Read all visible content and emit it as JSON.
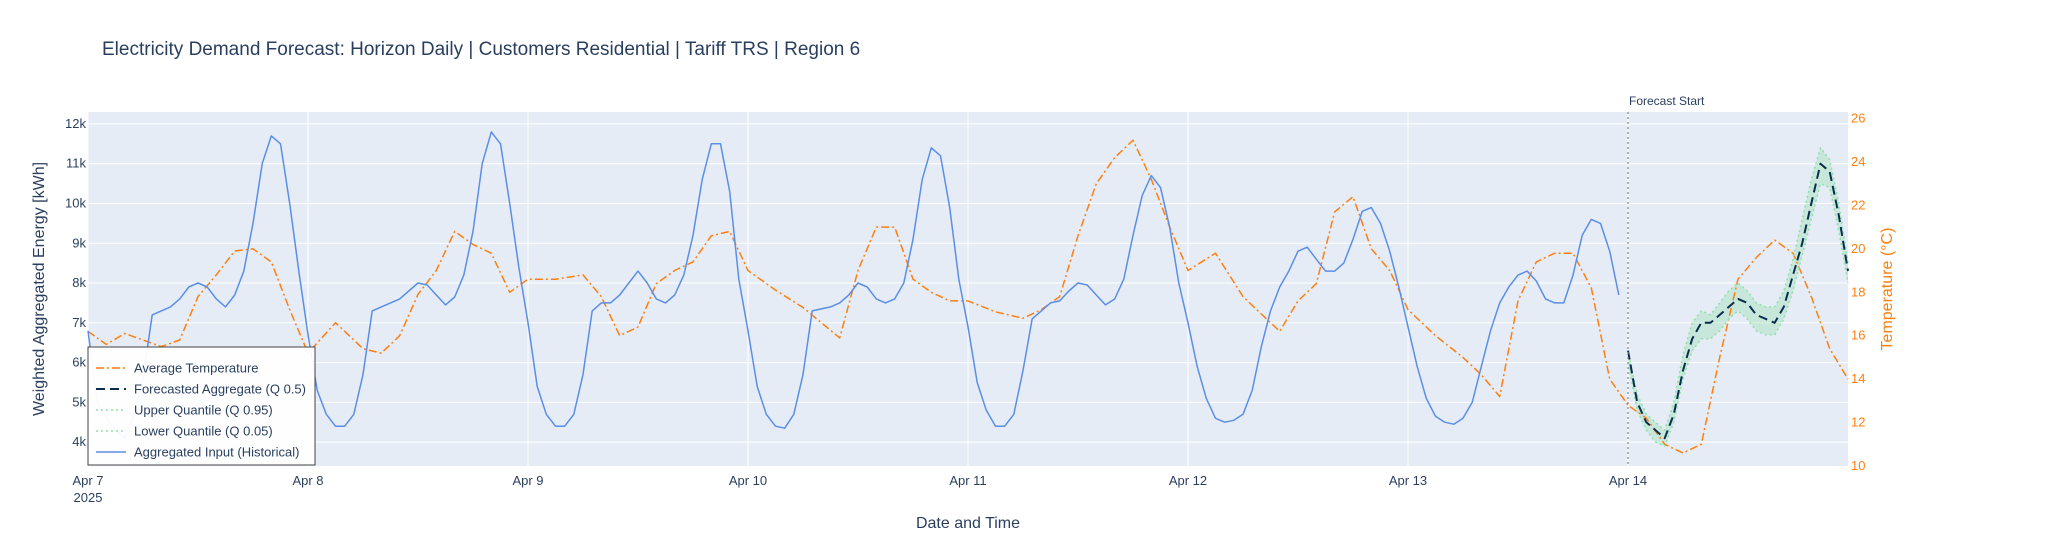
{
  "chart_data": {
    "type": "line",
    "title": "Electricity Demand Forecast: Horizon Daily | Customers Residential | Tariff TRS | Region 6",
    "xlabel": "Date and Time",
    "ylabel": "Weighted Aggregated Energy [kWh]",
    "y2label": "Temperature (°C)",
    "xlim": [
      "2025-04-07 00:00",
      "2025-04-15 00:00"
    ],
    "ylim": [
      3400,
      12300
    ],
    "y2lim": [
      10,
      26.3
    ],
    "x_ticks": [
      "Apr 7",
      "Apr 8",
      "Apr 9",
      "Apr 10",
      "Apr 11",
      "Apr 12",
      "Apr 13",
      "Apr 14"
    ],
    "x_tick_year": "2025",
    "y_ticks": [
      "4k",
      "5k",
      "6k",
      "7k",
      "8k",
      "9k",
      "10k",
      "11k",
      "12k"
    ],
    "y2_ticks": [
      "10",
      "12",
      "14",
      "16",
      "18",
      "20",
      "22",
      "24",
      "26"
    ],
    "grid": true,
    "legend_position": "bottom-left",
    "annotation": {
      "text": "Forecast Start",
      "x": "2025-04-14 00:00"
    },
    "series": [
      {
        "name": "Average Temperature",
        "axis": "y2",
        "color": "#ff7f0e",
        "style": "dashdot",
        "x": [
          "2025-04-07 00:00",
          "2025-04-07 02:00",
          "2025-04-07 04:00",
          "2025-04-07 06:00",
          "2025-04-07 08:00",
          "2025-04-07 10:00",
          "2025-04-07 12:00",
          "2025-04-07 14:00",
          "2025-04-07 16:00",
          "2025-04-07 18:00",
          "2025-04-07 20:00",
          "2025-04-07 22:00",
          "2025-04-08 00:00",
          "2025-04-08 03:00",
          "2025-04-08 06:00",
          "2025-04-08 08:00",
          "2025-04-08 10:00",
          "2025-04-08 12:00",
          "2025-04-08 14:00",
          "2025-04-08 16:00",
          "2025-04-08 18:00",
          "2025-04-08 20:00",
          "2025-04-08 22:00",
          "2025-04-09 00:00",
          "2025-04-09 03:00",
          "2025-04-09 06:00",
          "2025-04-09 08:00",
          "2025-04-09 10:00",
          "2025-04-09 12:00",
          "2025-04-09 14:00",
          "2025-04-09 16:00",
          "2025-04-09 18:00",
          "2025-04-09 20:00",
          "2025-04-09 22:00",
          "2025-04-10 00:00",
          "2025-04-10 03:00",
          "2025-04-10 06:00",
          "2025-04-10 08:00",
          "2025-04-10 10:00",
          "2025-04-10 12:00",
          "2025-04-10 14:00",
          "2025-04-10 16:00",
          "2025-04-10 18:00",
          "2025-04-10 20:00",
          "2025-04-10 22:00",
          "2025-04-11 00:00",
          "2025-04-11 03:00",
          "2025-04-11 06:00",
          "2025-04-11 08:00",
          "2025-04-11 10:00",
          "2025-04-11 12:00",
          "2025-04-11 14:00",
          "2025-04-11 16:00",
          "2025-04-11 18:00",
          "2025-04-11 20:00",
          "2025-04-11 22:00",
          "2025-04-12 00:00",
          "2025-04-12 03:00",
          "2025-04-12 06:00",
          "2025-04-12 08:00",
          "2025-04-12 10:00",
          "2025-04-12 12:00",
          "2025-04-12 14:00",
          "2025-04-12 16:00",
          "2025-04-12 18:00",
          "2025-04-12 20:00",
          "2025-04-12 22:00",
          "2025-04-13 00:00",
          "2025-04-13 03:00",
          "2025-04-13 06:00",
          "2025-04-13 08:00",
          "2025-04-13 10:00",
          "2025-04-13 12:00",
          "2025-04-13 14:00",
          "2025-04-13 16:00",
          "2025-04-13 18:00",
          "2025-04-13 20:00",
          "2025-04-13 22:00",
          "2025-04-14 00:00",
          "2025-04-14 02:00",
          "2025-04-14 04:00",
          "2025-04-14 06:00",
          "2025-04-14 08:00",
          "2025-04-14 10:00",
          "2025-04-14 12:00",
          "2025-04-14 14:00",
          "2025-04-14 16:00",
          "2025-04-14 18:00",
          "2025-04-14 20:00",
          "2025-04-14 22:00",
          "2025-04-15 00:00"
        ],
        "y": [
          16.2,
          15.6,
          16.1,
          15.8,
          15.5,
          15.8,
          17.8,
          18.8,
          19.9,
          20.0,
          19.4,
          17.2,
          15.2,
          16.6,
          15.4,
          15.2,
          16.0,
          17.9,
          19.0,
          20.8,
          20.2,
          19.8,
          18.0,
          18.6,
          18.6,
          18.8,
          17.8,
          16.0,
          16.4,
          18.4,
          19.0,
          19.4,
          20.6,
          20.8,
          19.0,
          18.1,
          17.3,
          16.6,
          15.9,
          19.0,
          21.0,
          21.0,
          18.6,
          18.0,
          17.6,
          17.6,
          17.1,
          16.8,
          17.2,
          17.8,
          20.6,
          23.0,
          24.2,
          25.0,
          23.2,
          21.0,
          19.0,
          19.8,
          17.8,
          17.0,
          16.2,
          17.6,
          18.4,
          21.7,
          22.4,
          20.0,
          19.0,
          17.2,
          16.0,
          15.0,
          14.2,
          13.2,
          17.6,
          19.4,
          19.8,
          19.8,
          18.2,
          14.0,
          12.8,
          12.2,
          11.0,
          10.6,
          11.0,
          15.0,
          18.6,
          19.6,
          20.4,
          19.8,
          17.8,
          15.4,
          14.0
        ]
      },
      {
        "name": "Forecasted Aggregate (Q 0.5)",
        "axis": "y",
        "color": "#0b2e4f",
        "style": "dash",
        "x": [
          "2025-04-14 00:00",
          "2025-04-14 01:00",
          "2025-04-14 02:00",
          "2025-04-14 03:00",
          "2025-04-14 04:00",
          "2025-04-14 05:00",
          "2025-04-14 06:00",
          "2025-04-14 07:00",
          "2025-04-14 08:00",
          "2025-04-14 09:00",
          "2025-04-14 10:00",
          "2025-04-14 11:00",
          "2025-04-14 12:00",
          "2025-04-14 13:00",
          "2025-04-14 14:00",
          "2025-04-14 15:00",
          "2025-04-14 16:00",
          "2025-04-14 17:00",
          "2025-04-14 18:00",
          "2025-04-14 19:00",
          "2025-04-14 20:00",
          "2025-04-14 21:00",
          "2025-04-14 22:00",
          "2025-04-14 23:00",
          "2025-04-15 00:00"
        ],
        "y": [
          6300,
          5000,
          4500,
          4300,
          4100,
          4700,
          5800,
          6600,
          7000,
          7000,
          7200,
          7400,
          7600,
          7500,
          7200,
          7100,
          7000,
          7400,
          8200,
          9000,
          10000,
          11000,
          10800,
          9700,
          8300
        ]
      },
      {
        "name": "Upper Quantile (Q 0.95)",
        "axis": "y",
        "color": "#8fe0a9",
        "style": "dot",
        "x": [
          "2025-04-14 00:00",
          "2025-04-14 01:00",
          "2025-04-14 02:00",
          "2025-04-14 03:00",
          "2025-04-14 04:00",
          "2025-04-14 05:00",
          "2025-04-14 06:00",
          "2025-04-14 07:00",
          "2025-04-14 08:00",
          "2025-04-14 09:00",
          "2025-04-14 10:00",
          "2025-04-14 11:00",
          "2025-04-14 12:00",
          "2025-04-14 13:00",
          "2025-04-14 14:00",
          "2025-04-14 15:00",
          "2025-04-14 16:00",
          "2025-04-14 17:00",
          "2025-04-14 18:00",
          "2025-04-14 19:00",
          "2025-04-14 20:00",
          "2025-04-14 21:00",
          "2025-04-14 22:00",
          "2025-04-14 23:00",
          "2025-04-15 00:00"
        ],
        "y": [
          6300,
          5200,
          4700,
          4500,
          4300,
          5000,
          6200,
          7000,
          7300,
          7200,
          7500,
          7800,
          8000,
          7800,
          7500,
          7400,
          7400,
          7800,
          8600,
          9600,
          10600,
          11400,
          11100,
          10000,
          8500
        ]
      },
      {
        "name": "Lower Quantile (Q 0.05)",
        "axis": "y",
        "color": "#8fe0a9",
        "style": "dot",
        "x": [
          "2025-04-14 00:00",
          "2025-04-14 01:00",
          "2025-04-14 02:00",
          "2025-04-14 03:00",
          "2025-04-14 04:00",
          "2025-04-14 05:00",
          "2025-04-14 06:00",
          "2025-04-14 07:00",
          "2025-04-14 08:00",
          "2025-04-14 09:00",
          "2025-04-14 10:00",
          "2025-04-14 11:00",
          "2025-04-14 12:00",
          "2025-04-14 13:00",
          "2025-04-14 14:00",
          "2025-04-14 15:00",
          "2025-04-14 16:00",
          "2025-04-14 17:00",
          "2025-04-14 18:00",
          "2025-04-14 19:00",
          "2025-04-14 20:00",
          "2025-04-14 21:00",
          "2025-04-14 22:00",
          "2025-04-14 23:00",
          "2025-04-15 00:00"
        ],
        "y": [
          6000,
          4800,
          4300,
          4000,
          3900,
          4500,
          5600,
          6300,
          6600,
          6600,
          6800,
          7100,
          7300,
          7100,
          6800,
          6700,
          6700,
          7100,
          7800,
          8700,
          9600,
          10500,
          10400,
          9300,
          8000
        ]
      },
      {
        "name": "Aggregated Input (Historical)",
        "axis": "y",
        "color": "#5b8ee6",
        "style": "solid",
        "x": [
          "2025-04-07 00:00",
          "2025-04-07 01:00",
          "2025-04-07 02:00",
          "2025-04-07 03:00",
          "2025-04-07 04:00",
          "2025-04-07 05:00",
          "2025-04-07 06:00",
          "2025-04-07 07:00",
          "2025-04-07 08:00",
          "2025-04-07 09:00",
          "2025-04-07 10:00",
          "2025-04-07 11:00",
          "2025-04-07 12:00",
          "2025-04-07 13:00",
          "2025-04-07 14:00",
          "2025-04-07 15:00",
          "2025-04-07 16:00",
          "2025-04-07 17:00",
          "2025-04-07 18:00",
          "2025-04-07 19:00",
          "2025-04-07 20:00",
          "2025-04-07 21:00",
          "2025-04-07 22:00",
          "2025-04-07 23:00",
          "2025-04-08 00:00",
          "2025-04-08 01:00",
          "2025-04-08 02:00",
          "2025-04-08 03:00",
          "2025-04-08 04:00",
          "2025-04-08 05:00",
          "2025-04-08 06:00",
          "2025-04-08 07:00",
          "2025-04-08 08:00",
          "2025-04-08 09:00",
          "2025-04-08 10:00",
          "2025-04-08 11:00",
          "2025-04-08 12:00",
          "2025-04-08 13:00",
          "2025-04-08 14:00",
          "2025-04-08 15:00",
          "2025-04-08 16:00",
          "2025-04-08 17:00",
          "2025-04-08 18:00",
          "2025-04-08 19:00",
          "2025-04-08 20:00",
          "2025-04-08 21:00",
          "2025-04-08 22:00",
          "2025-04-08 23:00",
          "2025-04-09 00:00",
          "2025-04-09 01:00",
          "2025-04-09 02:00",
          "2025-04-09 03:00",
          "2025-04-09 04:00",
          "2025-04-09 05:00",
          "2025-04-09 06:00",
          "2025-04-09 07:00",
          "2025-04-09 08:00",
          "2025-04-09 09:00",
          "2025-04-09 10:00",
          "2025-04-09 11:00",
          "2025-04-09 12:00",
          "2025-04-09 13:00",
          "2025-04-09 14:00",
          "2025-04-09 15:00",
          "2025-04-09 16:00",
          "2025-04-09 17:00",
          "2025-04-09 18:00",
          "2025-04-09 19:00",
          "2025-04-09 20:00",
          "2025-04-09 21:00",
          "2025-04-09 22:00",
          "2025-04-09 23:00",
          "2025-04-10 00:00",
          "2025-04-10 01:00",
          "2025-04-10 02:00",
          "2025-04-10 03:00",
          "2025-04-10 04:00",
          "2025-04-10 05:00",
          "2025-04-10 06:00",
          "2025-04-10 07:00",
          "2025-04-10 08:00",
          "2025-04-10 09:00",
          "2025-04-10 10:00",
          "2025-04-10 11:00",
          "2025-04-10 12:00",
          "2025-04-10 13:00",
          "2025-04-10 14:00",
          "2025-04-10 15:00",
          "2025-04-10 16:00",
          "2025-04-10 17:00",
          "2025-04-10 18:00",
          "2025-04-10 19:00",
          "2025-04-10 20:00",
          "2025-04-10 21:00",
          "2025-04-10 22:00",
          "2025-04-10 23:00",
          "2025-04-11 00:00",
          "2025-04-11 01:00",
          "2025-04-11 02:00",
          "2025-04-11 03:00",
          "2025-04-11 04:00",
          "2025-04-11 05:00",
          "2025-04-11 06:00",
          "2025-04-11 07:00",
          "2025-04-11 08:00",
          "2025-04-11 09:00",
          "2025-04-11 10:00",
          "2025-04-11 11:00",
          "2025-04-11 12:00",
          "2025-04-11 13:00",
          "2025-04-11 14:00",
          "2025-04-11 15:00",
          "2025-04-11 16:00",
          "2025-04-11 17:00",
          "2025-04-11 18:00",
          "2025-04-11 19:00",
          "2025-04-11 20:00",
          "2025-04-11 21:00",
          "2025-04-11 22:00",
          "2025-04-11 23:00",
          "2025-04-12 00:00",
          "2025-04-12 01:00",
          "2025-04-12 02:00",
          "2025-04-12 03:00",
          "2025-04-12 04:00",
          "2025-04-12 05:00",
          "2025-04-12 06:00",
          "2025-04-12 07:00",
          "2025-04-12 08:00",
          "2025-04-12 09:00",
          "2025-04-12 10:00",
          "2025-04-12 11:00",
          "2025-04-12 12:00",
          "2025-04-12 13:00",
          "2025-04-12 14:00",
          "2025-04-12 15:00",
          "2025-04-12 16:00",
          "2025-04-12 17:00",
          "2025-04-12 18:00",
          "2025-04-12 19:00",
          "2025-04-12 20:00",
          "2025-04-12 21:00",
          "2025-04-12 22:00",
          "2025-04-12 23:00",
          "2025-04-13 00:00",
          "2025-04-13 01:00",
          "2025-04-13 02:00",
          "2025-04-13 03:00",
          "2025-04-13 04:00",
          "2025-04-13 05:00",
          "2025-04-13 06:00",
          "2025-04-13 07:00",
          "2025-04-13 08:00",
          "2025-04-13 09:00",
          "2025-04-13 10:00",
          "2025-04-13 11:00",
          "2025-04-13 12:00",
          "2025-04-13 13:00",
          "2025-04-13 14:00",
          "2025-04-13 15:00",
          "2025-04-13 16:00",
          "2025-04-13 17:00",
          "2025-04-13 18:00",
          "2025-04-13 19:00",
          "2025-04-13 20:00",
          "2025-04-13 21:00",
          "2025-04-13 22:00",
          "2025-04-13 23:00"
        ],
        "y": [
          6800,
          5000,
          4600,
          4300,
          4100,
          4700,
          5600,
          7200,
          7300,
          7400,
          7600,
          7900,
          8000,
          7900,
          7600,
          7400,
          7700,
          8300,
          9500,
          11000,
          11700,
          11500,
          10000,
          8300,
          6700,
          5300,
          4700,
          4400,
          4400,
          4700,
          5700,
          7300,
          7400,
          7500,
          7600,
          7800,
          8000,
          7950,
          7700,
          7450,
          7650,
          8200,
          9300,
          11000,
          11800,
          11500,
          10000,
          8400,
          7000,
          5400,
          4700,
          4400,
          4400,
          4700,
          5700,
          7300,
          7500,
          7500,
          7700,
          8000,
          8300,
          8000,
          7600,
          7500,
          7700,
          8200,
          9200,
          10600,
          11500,
          11500,
          10300,
          8100,
          6800,
          5400,
          4700,
          4400,
          4350,
          4700,
          5700,
          7300,
          7350,
          7400,
          7500,
          7700,
          8000,
          7900,
          7600,
          7500,
          7600,
          8000,
          9100,
          10600,
          11400,
          11200,
          9900,
          8100,
          6900,
          5500,
          4800,
          4400,
          4400,
          4700,
          5800,
          7100,
          7300,
          7500,
          7550,
          7800,
          8000,
          7950,
          7700,
          7450,
          7600,
          8100,
          9200,
          10200,
          10700,
          10400,
          9400,
          8000,
          7000,
          5900,
          5100,
          4600,
          4500,
          4550,
          4700,
          5300,
          6400,
          7300,
          7900,
          8300,
          8800,
          8900,
          8600,
          8300,
          8300,
          8500,
          9100,
          9800,
          9900,
          9500,
          8800,
          7900,
          6900,
          5900,
          5100,
          4650,
          4500,
          4450,
          4600,
          5000,
          5900,
          6800,
          7500,
          7900,
          8200,
          8300,
          8050,
          7600,
          7500,
          7500,
          8200,
          9200,
          9600,
          9500,
          8800,
          7700
        ]
      }
    ]
  }
}
